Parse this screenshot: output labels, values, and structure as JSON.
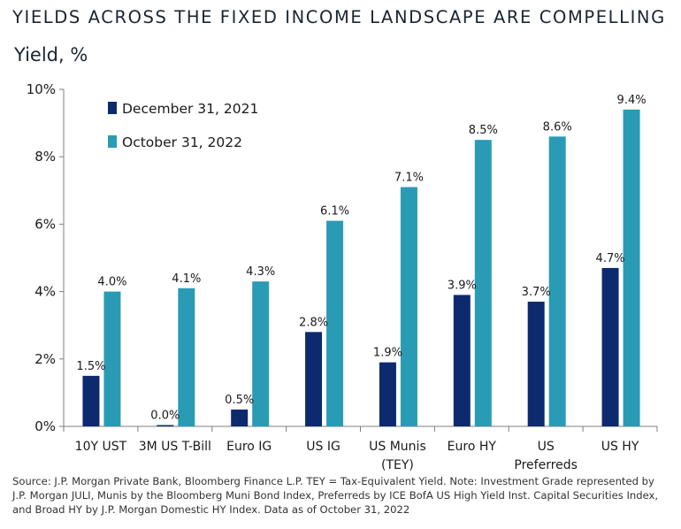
{
  "title": "YIELDS ACROSS THE FIXED INCOME LANDSCAPE ARE COMPELLING",
  "subtitle": "Yield, %",
  "source": "Source: J.P. Morgan Private Bank, Bloomberg Finance L.P. TEY = Tax-Equivalent Yield. Note: Investment Grade represented by J.P. Morgan JULI, Munis by the Bloomberg Muni Bond Index, Preferreds by ICE BofA US High Yield Inst. Capital Securities Index, and Broad HY by J.P. Morgan Domestic HY Index. Data as of October 31, 2022",
  "colors": {
    "series1": "#0e2a6e",
    "series2": "#2a9bb4",
    "axis": "#7f7f7f"
  },
  "chart_data": {
    "type": "bar",
    "title": "YIELDS ACROSS THE FIXED INCOME LANDSCAPE ARE COMPELLING",
    "ylabel": "Yield, %",
    "xlabel": "",
    "ylim": [
      0,
      10
    ],
    "yticks": [
      0,
      2,
      4,
      6,
      8,
      10
    ],
    "ytick_labels": [
      "0%",
      "2%",
      "4%",
      "6%",
      "8%",
      "10%"
    ],
    "grid": false,
    "legend_position": "top-left",
    "categories": [
      [
        "10Y UST"
      ],
      [
        "3M US T-Bill"
      ],
      [
        "Euro IG"
      ],
      [
        "US IG"
      ],
      [
        "US Munis",
        "(TEY)"
      ],
      [
        "Euro HY"
      ],
      [
        "US",
        "Preferreds"
      ],
      [
        "US HY"
      ]
    ],
    "series": [
      {
        "name": "December 31, 2021",
        "values": [
          1.5,
          0.0,
          0.5,
          2.8,
          1.9,
          3.9,
          3.7,
          4.7
        ],
        "labels": [
          "1.5%",
          "0.0%",
          "0.5%",
          "2.8%",
          "1.9%",
          "3.9%",
          "3.7%",
          "4.7%"
        ]
      },
      {
        "name": "October 31, 2022",
        "values": [
          4.0,
          4.1,
          4.3,
          6.1,
          7.1,
          8.5,
          8.6,
          9.4
        ],
        "labels": [
          "4.0%",
          "4.1%",
          "4.3%",
          "6.1%",
          "7.1%",
          "8.5%",
          "8.6%",
          "9.4%"
        ]
      }
    ]
  }
}
